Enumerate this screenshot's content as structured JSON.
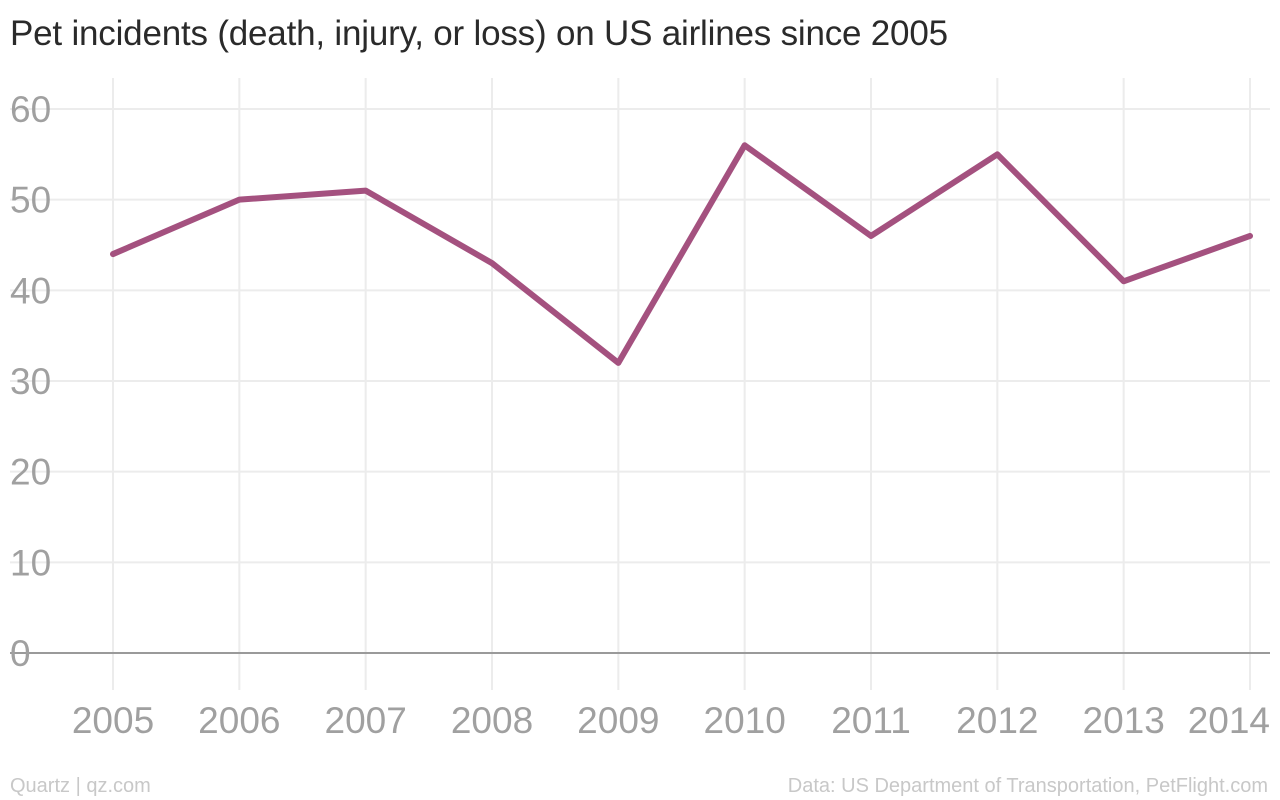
{
  "chart_data": {
    "type": "line",
    "title": "Pet incidents (death, injury, or loss) on US airlines since 2005",
    "xlabel": "",
    "ylabel": "",
    "categories": [
      "2005",
      "2006",
      "2007",
      "2008",
      "2009",
      "2010",
      "2011",
      "2012",
      "2013",
      "2014"
    ],
    "series": [
      {
        "values": [
          44,
          50,
          51,
          43,
          32,
          56,
          46,
          55,
          41,
          46
        ],
        "color": "#a4517f"
      }
    ],
    "ylim": [
      0,
      60
    ],
    "yticks": [
      "0",
      "10",
      "20",
      "30",
      "40",
      "50",
      "60"
    ],
    "grid": true,
    "legend": "none"
  },
  "footer": {
    "source_left": "Quartz | qz.com",
    "source_right": "Data: US Department of Transportation, PetFlight.com"
  }
}
